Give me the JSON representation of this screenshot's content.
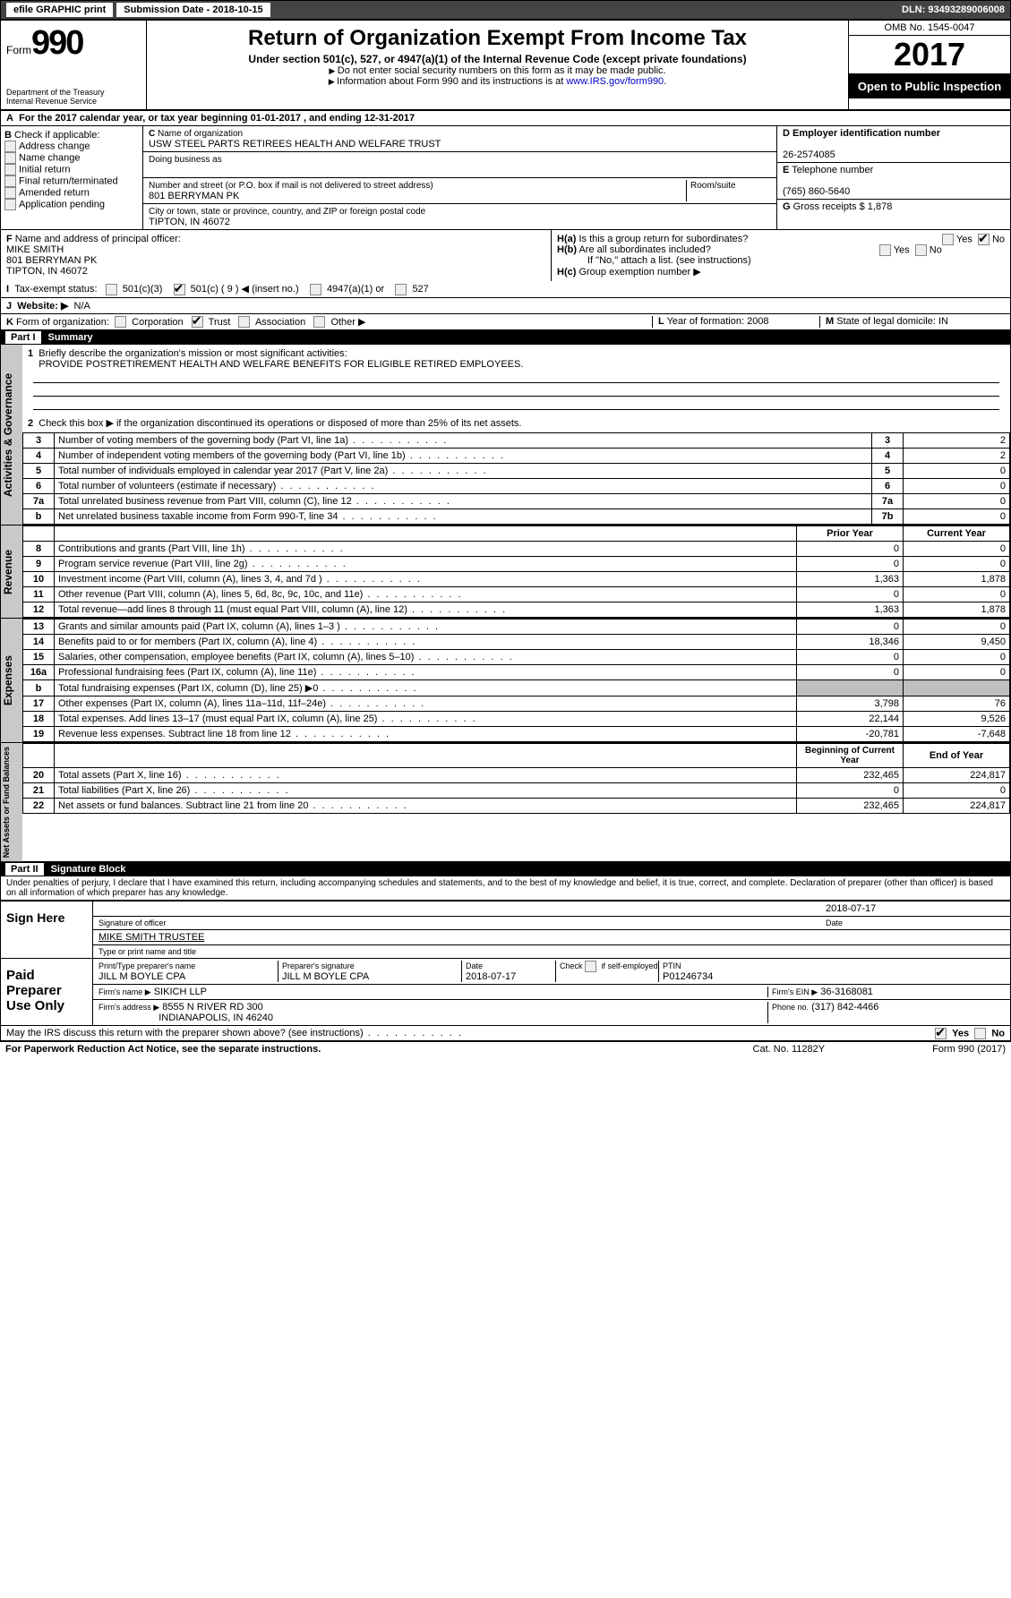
{
  "topbar": {
    "efile": "efile GRAPHIC print",
    "sub_label": "Submission Date",
    "sub_date": "2018-10-15",
    "dln_label": "DLN:",
    "dln": "93493289006008"
  },
  "header": {
    "form_prefix": "Form",
    "form_no": "990",
    "dept1": "Department of the Treasury",
    "dept2": "Internal Revenue Service",
    "title": "Return of Organization Exempt From Income Tax",
    "subtitle": "Under section 501(c), 527, or 4947(a)(1) of the Internal Revenue Code (except private foundations)",
    "hint1": "Do not enter social security numbers on this form as it may be made public.",
    "hint2_a": "Information about Form 990 and its instructions is at ",
    "hint2_link": "www.IRS.gov/form990",
    "omb": "OMB No. 1545-0047",
    "year": "2017",
    "open": "Open to Public Inspection"
  },
  "A": {
    "text": "For the 2017 calendar year, or tax year beginning 01-01-2017   , and ending 12-31-2017"
  },
  "B": {
    "label": "Check if applicable:",
    "items": [
      "Address change",
      "Name change",
      "Initial return",
      "Final return/terminated",
      "Amended return",
      "Application pending"
    ]
  },
  "C": {
    "name_label": "Name of organization",
    "name": "USW STEEL PARTS RETIREES HEALTH AND WELFARE TRUST",
    "dba_label": "Doing business as",
    "dba": "",
    "street_label": "Number and street (or P.O. box if mail is not delivered to street address)",
    "room_label": "Room/suite",
    "street": "801 BERRYMAN PK",
    "city_label": "City or town, state or province, country, and ZIP or foreign postal code",
    "city": "TIPTON, IN  46072"
  },
  "D": {
    "label": "Employer identification number",
    "value": "26-2574085"
  },
  "E": {
    "label": "Telephone number",
    "value": "(765) 860-5640"
  },
  "G": {
    "label": "Gross receipts $",
    "value": "1,878"
  },
  "F": {
    "label": "Name and address of principal officer:",
    "name": "MIKE SMITH",
    "addr1": "801 BERRYMAN PK",
    "addr2": "TIPTON, IN  46072"
  },
  "H": {
    "a": "Is this a group return for subordinates?",
    "a_yes": "Yes",
    "a_no": "No",
    "b": "Are all subordinates included?",
    "b_yes": "Yes",
    "b_no": "No",
    "b_note": "If \"No,\" attach a list. (see instructions)",
    "c": "Group exemption number ▶"
  },
  "I": {
    "label": "Tax-exempt status:",
    "o1": "501(c)(3)",
    "o2": "501(c) (",
    "o2n": "9",
    "o2s": ") ◀ (insert no.)",
    "o3": "4947(a)(1) or",
    "o4": "527"
  },
  "J": {
    "label": "Website: ▶",
    "value": "N/A"
  },
  "K": {
    "label": "Form of organization:",
    "o": [
      "Corporation",
      "Trust",
      "Association",
      "Other ▶"
    ]
  },
  "L": {
    "label": "Year of formation:",
    "value": "2008"
  },
  "M": {
    "label": "State of legal domicile:",
    "value": "IN"
  },
  "partI": {
    "label": "Part I",
    "title": "Summary"
  },
  "q1": {
    "label": "Briefly describe the organization's mission or most significant activities:",
    "text": "PROVIDE POSTRETIREMENT HEALTH AND WELFARE BENEFITS FOR ELIGIBLE RETIRED EMPLOYEES."
  },
  "q2": "Check this box ▶        if the organization discontinued its operations or disposed of more than 25% of its net assets.",
  "gov_rows": [
    {
      "n": "3",
      "t": "Number of voting members of the governing body (Part VI, line 1a)",
      "k": "3",
      "v": "2"
    },
    {
      "n": "4",
      "t": "Number of independent voting members of the governing body (Part VI, line 1b)",
      "k": "4",
      "v": "2"
    },
    {
      "n": "5",
      "t": "Total number of individuals employed in calendar year 2017 (Part V, line 2a)",
      "k": "5",
      "v": "0"
    },
    {
      "n": "6",
      "t": "Total number of volunteers (estimate if necessary)",
      "k": "6",
      "v": "0"
    },
    {
      "n": "7a",
      "t": "Total unrelated business revenue from Part VIII, column (C), line 12",
      "k": "7a",
      "v": "0"
    },
    {
      "n": "b",
      "t": "Net unrelated business taxable income from Form 990-T, line 34",
      "k": "7b",
      "v": "0"
    }
  ],
  "col_headers": {
    "py": "Prior Year",
    "cy": "Current Year",
    "bcy": "Beginning of Current Year",
    "ey": "End of Year"
  },
  "rev_rows": [
    {
      "n": "8",
      "t": "Contributions and grants (Part VIII, line 1h)",
      "py": "0",
      "cy": "0"
    },
    {
      "n": "9",
      "t": "Program service revenue (Part VIII, line 2g)",
      "py": "0",
      "cy": "0"
    },
    {
      "n": "10",
      "t": "Investment income (Part VIII, column (A), lines 3, 4, and 7d )",
      "py": "1,363",
      "cy": "1,878"
    },
    {
      "n": "11",
      "t": "Other revenue (Part VIII, column (A), lines 5, 6d, 8c, 9c, 10c, and 11e)",
      "py": "0",
      "cy": "0"
    },
    {
      "n": "12",
      "t": "Total revenue—add lines 8 through 11 (must equal Part VIII, column (A), line 12)",
      "py": "1,363",
      "cy": "1,878"
    }
  ],
  "exp_rows": [
    {
      "n": "13",
      "t": "Grants and similar amounts paid (Part IX, column (A), lines 1–3 )",
      "py": "0",
      "cy": "0"
    },
    {
      "n": "14",
      "t": "Benefits paid to or for members (Part IX, column (A), line 4)",
      "py": "18,346",
      "cy": "9,450"
    },
    {
      "n": "15",
      "t": "Salaries, other compensation, employee benefits (Part IX, column (A), lines 5–10)",
      "py": "0",
      "cy": "0"
    },
    {
      "n": "16a",
      "t": "Professional fundraising fees (Part IX, column (A), line 11e)",
      "py": "0",
      "cy": "0"
    },
    {
      "n": "b",
      "t": "Total fundraising expenses (Part IX, column (D), line 25) ▶0",
      "py": "",
      "cy": "",
      "shade": true
    },
    {
      "n": "17",
      "t": "Other expenses (Part IX, column (A), lines 11a–11d, 11f–24e)",
      "py": "3,798",
      "cy": "76"
    },
    {
      "n": "18",
      "t": "Total expenses. Add lines 13–17 (must equal Part IX, column (A), line 25)",
      "py": "22,144",
      "cy": "9,526"
    },
    {
      "n": "19",
      "t": "Revenue less expenses. Subtract line 18 from line 12",
      "py": "-20,781",
      "cy": "-7,648"
    }
  ],
  "net_rows": [
    {
      "n": "20",
      "t": "Total assets (Part X, line 16)",
      "py": "232,465",
      "cy": "224,817"
    },
    {
      "n": "21",
      "t": "Total liabilities (Part X, line 26)",
      "py": "0",
      "cy": "0"
    },
    {
      "n": "22",
      "t": "Net assets or fund balances. Subtract line 21 from line 20",
      "py": "232,465",
      "cy": "224,817"
    }
  ],
  "vlabels": {
    "gov": "Activities & Governance",
    "rev": "Revenue",
    "exp": "Expenses",
    "net": "Net Assets or Fund Balances"
  },
  "partII": {
    "label": "Part II",
    "title": "Signature Block"
  },
  "perjury": "Under penalties of perjury, I declare that I have examined this return, including accompanying schedules and statements, and to the best of my knowledge and belief, it is true, correct, and complete. Declaration of preparer (other than officer) is based on all information of which preparer has any knowledge.",
  "sign": {
    "here": "Sign Here",
    "sig_line": "Signature of officer",
    "date_line": "Date",
    "date": "2018-07-17",
    "name": "MIKE SMITH TRUSTEE",
    "name_line": "Type or print name and title"
  },
  "paid": {
    "label": "Paid Preparer Use Only",
    "h1": "Print/Type preparer's name",
    "v1": "JILL M BOYLE CPA",
    "h2": "Preparer's signature",
    "v2": "JILL M BOYLE CPA",
    "h3": "Date",
    "v3": "2018-07-17",
    "h4": "Check        if self-employed",
    "h5": "PTIN",
    "v5": "P01246734",
    "firm_l": "Firm's name    ▶",
    "firm": "SIKICH LLP",
    "ein_l": "Firm's EIN ▶",
    "ein": "36-3168081",
    "addr_l": "Firm's address ▶",
    "addr1": "8555 N RIVER RD 300",
    "addr2": "INDIANAPOLIS, IN  46240",
    "ph_l": "Phone no.",
    "ph": "(317) 842-4466"
  },
  "discuss": {
    "q": "May the IRS discuss this return with the preparer shown above? (see instructions)",
    "yes": "Yes",
    "no": "No"
  },
  "footer": {
    "l": "For Paperwork Reduction Act Notice, see the separate instructions.",
    "m": "Cat. No. 11282Y",
    "r": "Form 990 (2017)"
  }
}
